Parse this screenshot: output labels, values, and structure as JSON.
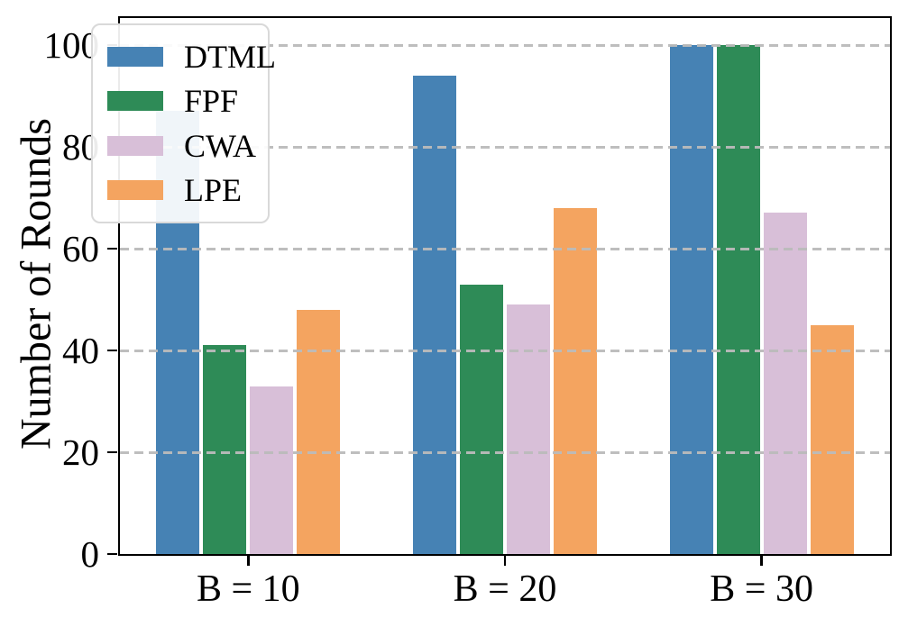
{
  "chart_data": {
    "type": "bar",
    "title": "",
    "xlabel": "",
    "ylabel": "Number of Rounds",
    "categories": [
      "B = 10",
      "B = 20",
      "B = 30"
    ],
    "series": [
      {
        "name": "DTML",
        "color": "#4682B4",
        "values": [
          87,
          94,
          100
        ]
      },
      {
        "name": "FPF",
        "color": "#2E8B57",
        "values": [
          41,
          53,
          100
        ]
      },
      {
        "name": "CWA",
        "color": "#D8BFD8",
        "values": [
          33,
          49,
          67
        ]
      },
      {
        "name": "LPE",
        "color": "#F4A460",
        "values": [
          48,
          68,
          45
        ]
      }
    ],
    "ylim": [
      0,
      105
    ],
    "yticks": [
      0,
      20,
      40,
      60,
      80,
      100
    ],
    "grid": "horizontal dashed, drawn above bars",
    "grid_color": "#bbbbbb",
    "legend_position": "upper left",
    "axis_color": "#000000",
    "background_color": "#ffffff"
  }
}
